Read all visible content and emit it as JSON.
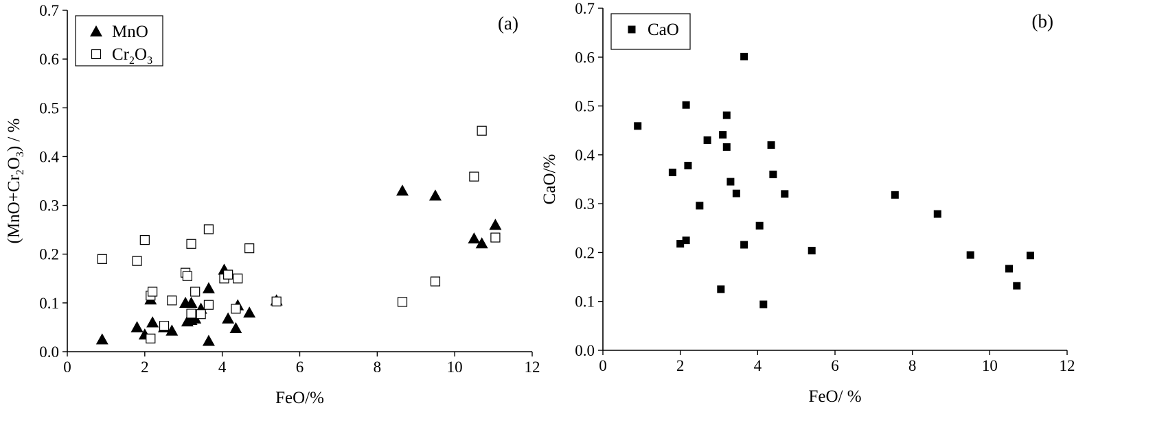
{
  "chart_data": [
    {
      "id": "a",
      "type": "scatter",
      "panel_label": "(a)",
      "xlabel": "FeO/%",
      "ylabel": {
        "prefix": "(MnO+Cr",
        "sub1": "2",
        "mid": "O",
        "sub2": "3",
        "suffix": ") / %"
      },
      "xlim": [
        0,
        12
      ],
      "ylim": [
        0,
        0.7
      ],
      "xticks": [
        "0",
        "2",
        "4",
        "6",
        "8",
        "10",
        "12"
      ],
      "yticks": [
        "0.0",
        "0.1",
        "0.2",
        "0.3",
        "0.4",
        "0.5",
        "0.6",
        "0.7"
      ],
      "legend_position": "top-left",
      "grid": false,
      "series": [
        {
          "key": "mno",
          "name": "MnO",
          "marker": "filled-triangle",
          "color": "#000000",
          "points": [
            [
              0.9,
              0.025
            ],
            [
              1.8,
              0.05
            ],
            [
              2.0,
              0.035
            ],
            [
              2.15,
              0.107
            ],
            [
              2.2,
              0.06
            ],
            [
              2.5,
              0.05
            ],
            [
              2.7,
              0.043
            ],
            [
              3.05,
              0.1
            ],
            [
              3.1,
              0.062
            ],
            [
              3.2,
              0.065
            ],
            [
              3.2,
              0.1
            ],
            [
              3.3,
              0.068
            ],
            [
              3.45,
              0.088
            ],
            [
              3.65,
              0.13
            ],
            [
              3.65,
              0.022
            ],
            [
              4.05,
              0.168
            ],
            [
              4.15,
              0.068
            ],
            [
              4.35,
              0.048
            ],
            [
              4.4,
              0.095
            ],
            [
              4.7,
              0.08
            ],
            [
              5.4,
              0.105
            ],
            [
              8.65,
              0.33
            ],
            [
              9.5,
              0.32
            ],
            [
              10.5,
              0.232
            ],
            [
              10.7,
              0.222
            ],
            [
              11.05,
              0.26
            ]
          ]
        },
        {
          "key": "cr2o3",
          "name": "Cr",
          "name_sub": "2",
          "name_mid": "O",
          "name_sub2": "3",
          "marker": "open-square",
          "color": "#000000",
          "points": [
            [
              0.9,
              0.19
            ],
            [
              1.8,
              0.186
            ],
            [
              2.0,
              0.229
            ],
            [
              2.15,
              0.115
            ],
            [
              2.2,
              0.123
            ],
            [
              2.15,
              0.027
            ],
            [
              2.5,
              0.053
            ],
            [
              2.7,
              0.105
            ],
            [
              3.05,
              0.162
            ],
            [
              3.1,
              0.155
            ],
            [
              3.2,
              0.221
            ],
            [
              3.2,
              0.078
            ],
            [
              3.3,
              0.123
            ],
            [
              3.45,
              0.077
            ],
            [
              3.65,
              0.251
            ],
            [
              3.65,
              0.096
            ],
            [
              4.05,
              0.15
            ],
            [
              4.15,
              0.158
            ],
            [
              4.35,
              0.088
            ],
            [
              4.4,
              0.15
            ],
            [
              4.7,
              0.212
            ],
            [
              5.4,
              0.103
            ],
            [
              8.65,
              0.102
            ],
            [
              9.5,
              0.144
            ],
            [
              10.5,
              0.359
            ],
            [
              10.7,
              0.453
            ],
            [
              11.05,
              0.234
            ]
          ]
        }
      ]
    },
    {
      "id": "b",
      "type": "scatter",
      "panel_label": "(b)",
      "xlabel": "FeO/ %",
      "ylabel": "CaO/%",
      "xlim": [
        0,
        12
      ],
      "ylim": [
        0,
        0.7
      ],
      "xticks": [
        "0",
        "2",
        "4",
        "6",
        "8",
        "10",
        "12"
      ],
      "yticks": [
        "0.0",
        "0.1",
        "0.2",
        "0.3",
        "0.4",
        "0.5",
        "0.6",
        "0.7"
      ],
      "legend_position": "top-left",
      "grid": false,
      "series": [
        {
          "key": "cao",
          "name": "CaO",
          "marker": "filled-square",
          "color": "#000000",
          "points": [
            [
              0.9,
              0.459
            ],
            [
              1.8,
              0.364
            ],
            [
              2.0,
              0.218
            ],
            [
              2.15,
              0.502
            ],
            [
              2.2,
              0.378
            ],
            [
              2.15,
              0.225
            ],
            [
              2.5,
              0.296
            ],
            [
              2.7,
              0.43
            ],
            [
              3.05,
              0.125
            ],
            [
              3.1,
              0.441
            ],
            [
              3.2,
              0.416
            ],
            [
              3.2,
              0.481
            ],
            [
              3.3,
              0.345
            ],
            [
              3.45,
              0.321
            ],
            [
              3.65,
              0.601
            ],
            [
              3.65,
              0.216
            ],
            [
              4.05,
              0.255
            ],
            [
              4.15,
              0.094
            ],
            [
              4.35,
              0.42
            ],
            [
              4.4,
              0.36
            ],
            [
              4.7,
              0.32
            ],
            [
              5.4,
              0.204
            ],
            [
              7.55,
              0.318
            ],
            [
              8.65,
              0.279
            ],
            [
              9.5,
              0.195
            ],
            [
              10.5,
              0.167
            ],
            [
              10.7,
              0.132
            ],
            [
              11.05,
              0.194
            ]
          ]
        }
      ]
    }
  ]
}
